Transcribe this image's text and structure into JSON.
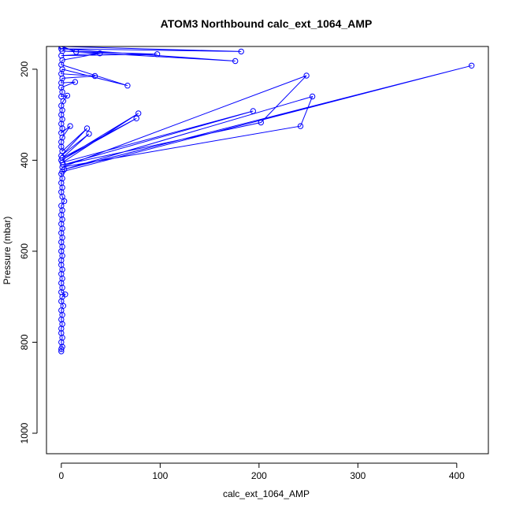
{
  "chart_data": {
    "type": "line",
    "title": "ATOM3 Northbound calc_ext_1064_AMP",
    "xlabel": "calc_ext_1064_AMP",
    "ylabel": "Pressure (mbar)",
    "xlim": [
      -15,
      432
    ],
    "ylim": [
      1045,
      150
    ],
    "y_reversed": true,
    "x_ticks": [
      0,
      100,
      200,
      300,
      400
    ],
    "x_tick_labels": [
      "0",
      "100",
      "200",
      "300",
      "400"
    ],
    "y_ticks": [
      200,
      400,
      600,
      800,
      1000
    ],
    "y_tick_labels": [
      "200",
      "400",
      "600",
      "800",
      "1000"
    ],
    "grid": false,
    "legend": "none",
    "series": [
      {
        "color": "#0000ff",
        "marker": "open-circle",
        "points": [
          [
            0,
            820
          ],
          [
            0,
            815
          ],
          [
            1,
            810
          ],
          [
            0,
            800
          ],
          [
            1,
            790
          ],
          [
            0,
            780
          ],
          [
            0,
            770
          ],
          [
            1,
            760
          ],
          [
            0,
            750
          ],
          [
            1,
            740
          ],
          [
            0,
            730
          ],
          [
            2,
            720
          ],
          [
            0,
            710
          ],
          [
            1,
            700
          ],
          [
            4,
            695
          ],
          [
            0,
            690
          ],
          [
            1,
            680
          ],
          [
            0,
            670
          ],
          [
            1,
            660
          ],
          [
            0,
            650
          ],
          [
            1,
            640
          ],
          [
            0,
            630
          ],
          [
            0,
            620
          ],
          [
            1,
            610
          ],
          [
            0,
            600
          ],
          [
            1,
            590
          ],
          [
            0,
            580
          ],
          [
            1,
            570
          ],
          [
            0,
            560
          ],
          [
            1,
            550
          ],
          [
            0,
            540
          ],
          [
            1,
            530
          ],
          [
            0,
            520
          ],
          [
            1,
            510
          ],
          [
            0,
            500
          ],
          [
            3,
            490
          ],
          [
            1,
            480
          ],
          [
            0,
            470
          ],
          [
            1,
            460
          ],
          [
            0,
            450
          ],
          [
            1,
            440
          ],
          [
            0,
            430
          ],
          [
            1,
            425
          ],
          [
            415,
            192
          ],
          [
            3,
            420
          ],
          [
            254,
            260
          ],
          [
            242,
            325
          ],
          [
            1,
            415
          ],
          [
            248,
            214
          ],
          [
            202,
            317
          ],
          [
            2,
            410
          ],
          [
            194,
            292
          ],
          [
            1,
            405
          ],
          [
            78,
            297
          ],
          [
            0,
            400
          ],
          [
            76,
            308
          ],
          [
            1,
            395
          ],
          [
            28,
            342
          ],
          [
            0,
            390
          ],
          [
            26,
            330
          ],
          [
            1,
            380
          ],
          [
            0,
            370
          ],
          [
            0,
            360
          ],
          [
            1,
            350
          ],
          [
            9,
            325
          ],
          [
            0,
            340
          ],
          [
            1,
            330
          ],
          [
            0,
            320
          ],
          [
            1,
            310
          ],
          [
            0,
            300
          ],
          [
            1,
            290
          ],
          [
            0,
            280
          ],
          [
            2,
            270
          ],
          [
            6,
            258
          ],
          [
            0,
            260
          ],
          [
            1,
            250
          ],
          [
            0,
            240
          ],
          [
            14,
            228
          ],
          [
            0,
            230
          ],
          [
            1,
            220
          ],
          [
            34,
            215
          ],
          [
            0,
            210
          ],
          [
            1,
            200
          ],
          [
            67,
            236
          ],
          [
            0,
            190
          ],
          [
            1,
            180
          ],
          [
            39,
            165
          ],
          [
            0,
            170
          ],
          [
            97,
            167
          ],
          [
            1,
            160
          ],
          [
            176,
            182
          ],
          [
            0,
            155
          ],
          [
            182,
            161
          ],
          [
            1,
            150
          ],
          [
            15,
            162
          ],
          [
            0,
            150
          ]
        ]
      }
    ]
  }
}
